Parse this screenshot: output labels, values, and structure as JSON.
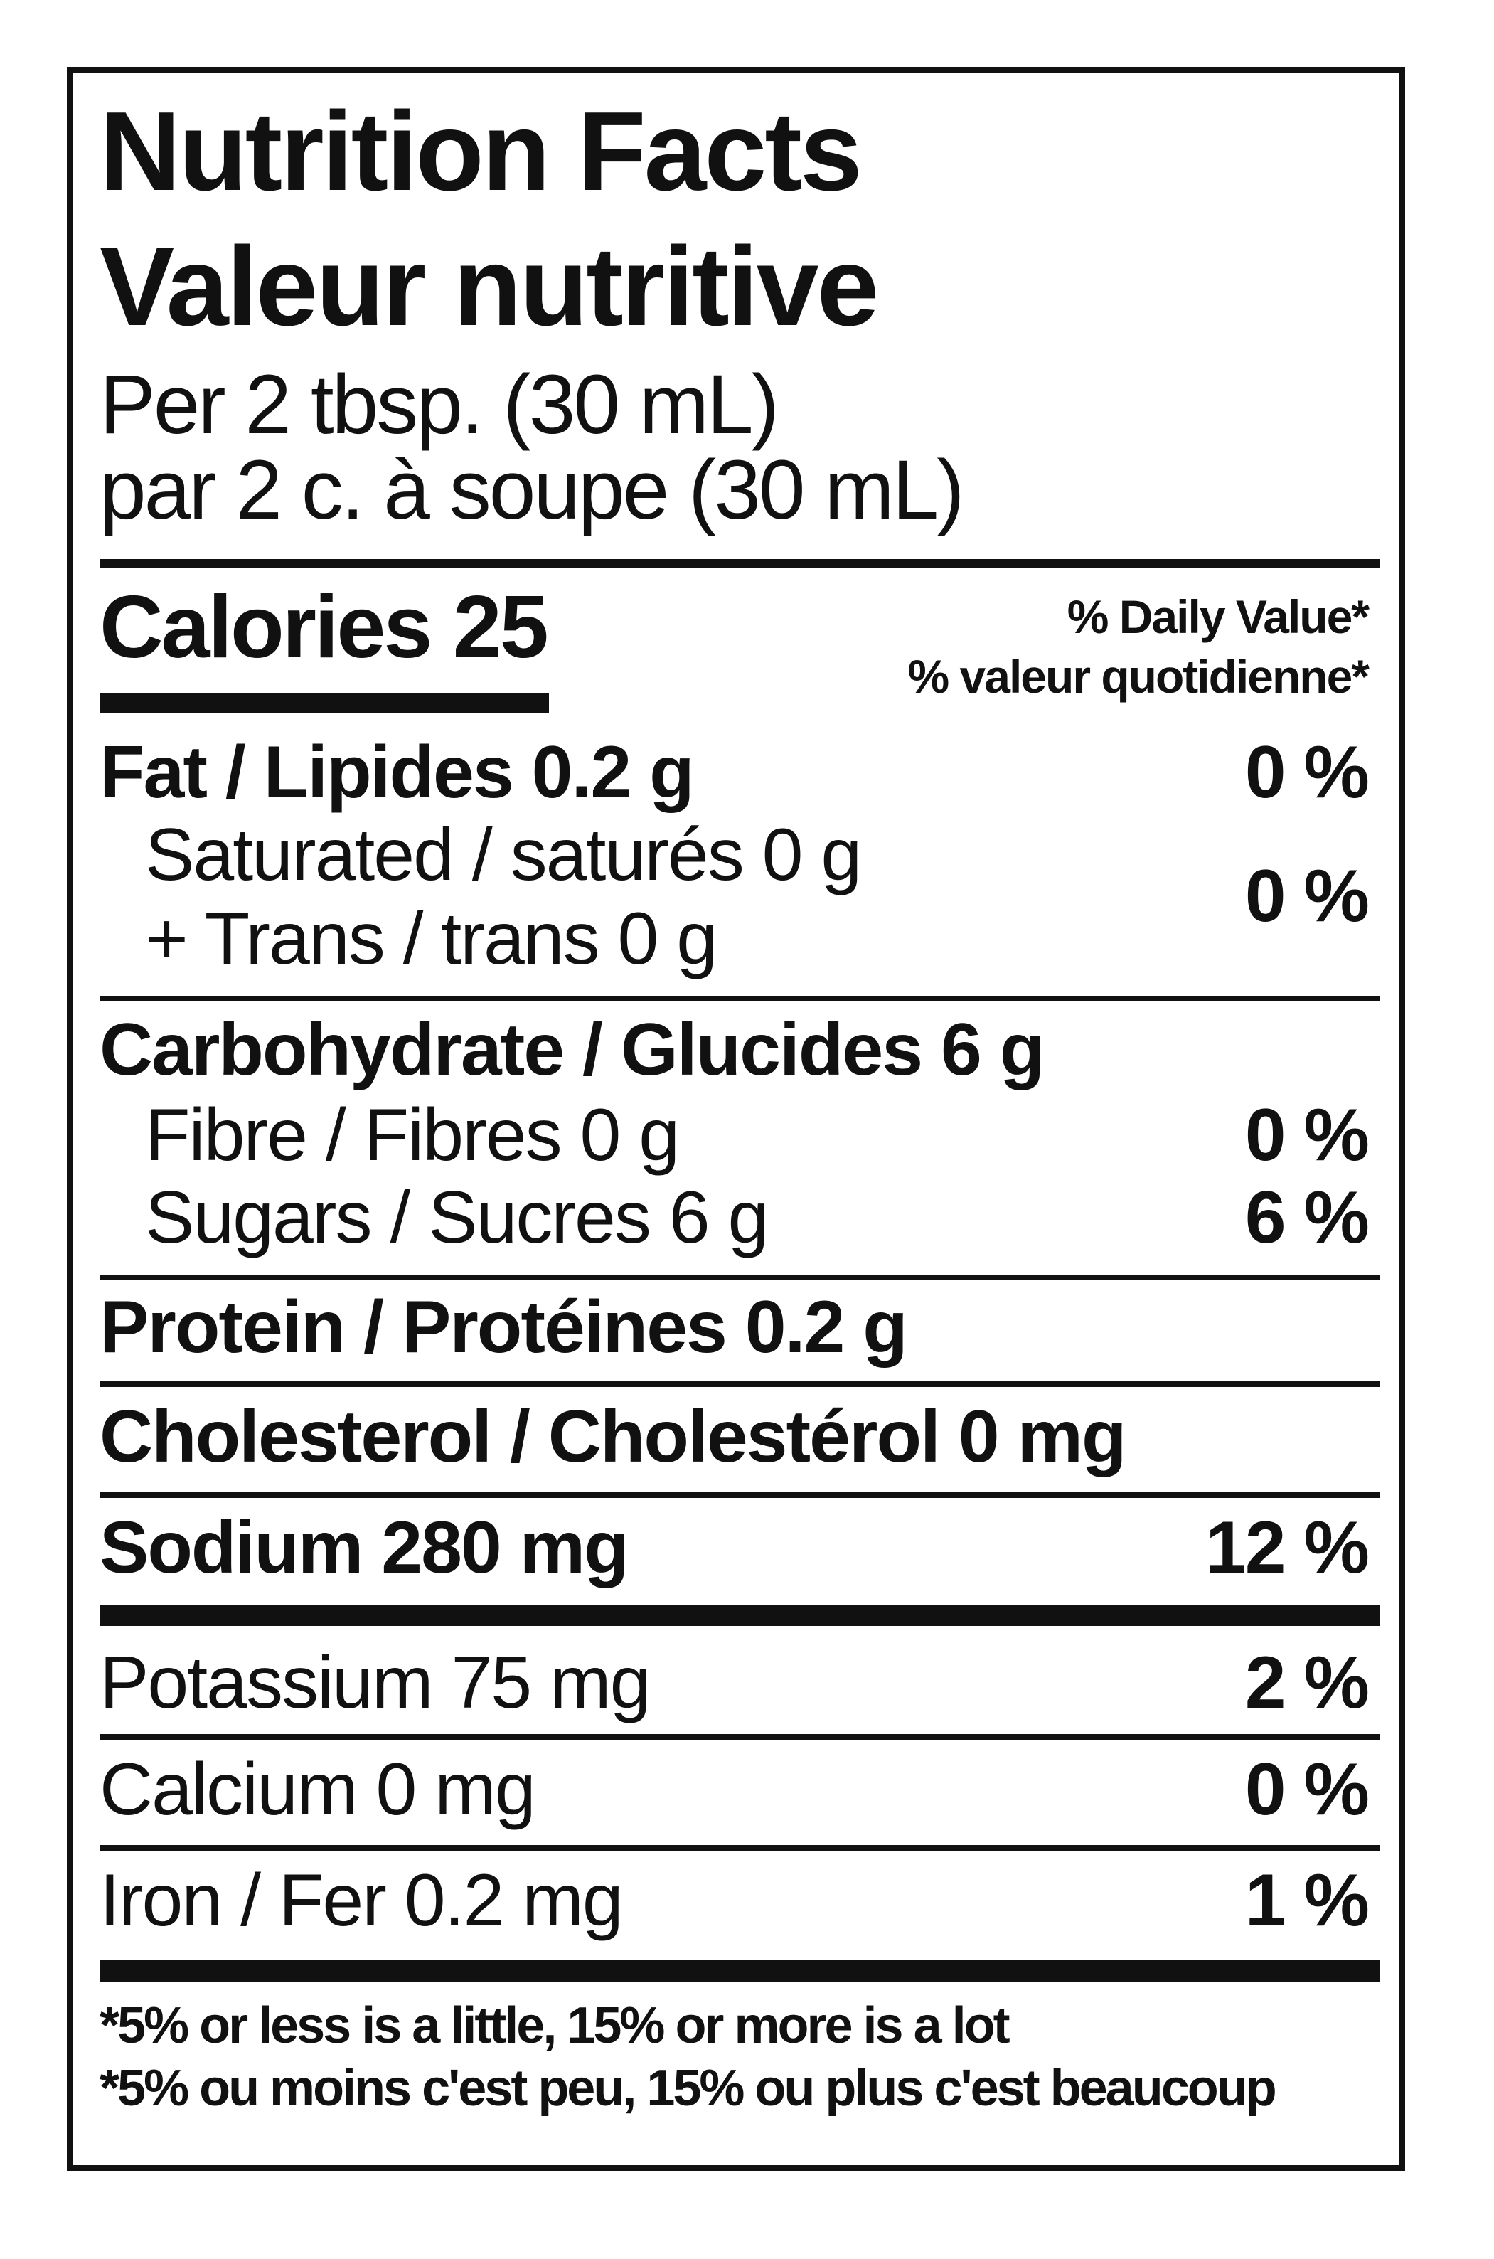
{
  "header": {
    "title_en": "Nutrition Facts",
    "title_fr": "Valeur nutritive",
    "serving_en": "Per 2 tbsp. (30 mL)",
    "serving_fr": "par 2 c. à soupe (30 mL)"
  },
  "calories": {
    "label": "Calories",
    "value": "25"
  },
  "daily_value_header": {
    "en": "% Daily Value*",
    "fr": "% valeur quotidienne*"
  },
  "nutrients": {
    "fat": {
      "label": "Fat / Lipides",
      "amount": "0.2 g",
      "dv": "0 %"
    },
    "saturated": {
      "label": "Saturated / saturés",
      "amount": "0 g"
    },
    "trans": {
      "label": "+ Trans / trans",
      "amount": "0 g"
    },
    "sat_trans_dv": "0 %",
    "carbohydrate": {
      "label": "Carbohydrate / Glucides",
      "amount": "6 g"
    },
    "fibre": {
      "label": "Fibre / Fibres",
      "amount": "0 g",
      "dv": "0 %"
    },
    "sugars": {
      "label": "Sugars / Sucres",
      "amount": "6 g",
      "dv": "6 %"
    },
    "protein": {
      "label": "Protein / Protéines",
      "amount": "0.2 g"
    },
    "cholesterol": {
      "label": "Cholesterol / Cholestérol",
      "amount": "0 mg"
    },
    "sodium": {
      "label": "Sodium",
      "amount": "280 mg",
      "dv": "12 %"
    },
    "potassium": {
      "label": "Potassium",
      "amount": "75 mg",
      "dv": "2 %"
    },
    "calcium": {
      "label": "Calcium",
      "amount": "0 mg",
      "dv": "0 %"
    },
    "iron": {
      "label": "Iron / Fer",
      "amount": "0.2 mg",
      "dv": "1 %"
    }
  },
  "footnote": {
    "en": "*5% or less is a little, 15% or more is a lot",
    "fr": "*5% ou moins c'est peu, 15% ou plus c'est beaucoup"
  }
}
